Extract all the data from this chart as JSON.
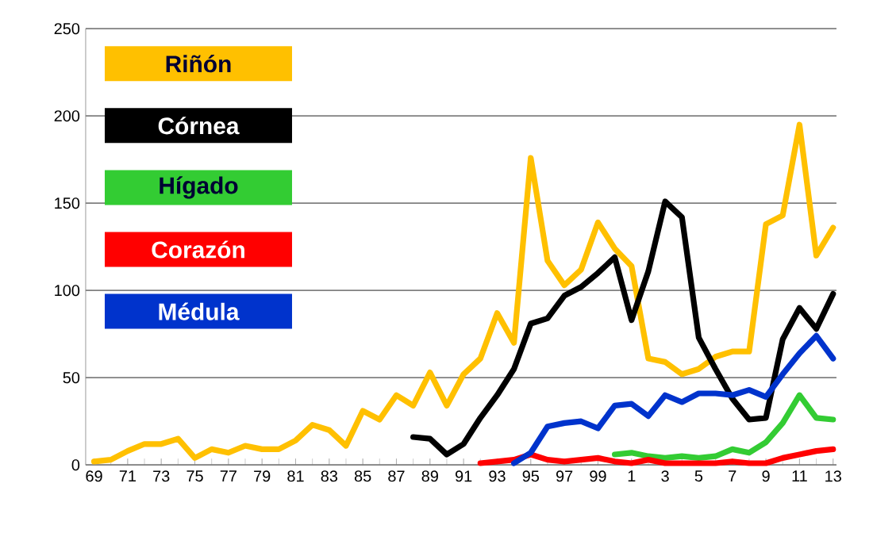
{
  "chart_data": {
    "type": "line",
    "categories": [
      "69",
      null,
      "71",
      null,
      "73",
      null,
      "75",
      null,
      "77",
      null,
      "79",
      null,
      "81",
      null,
      "83",
      null,
      "85",
      null,
      "87",
      null,
      "89",
      null,
      "91",
      null,
      "93",
      null,
      "95",
      null,
      "97",
      null,
      "99",
      null,
      "1",
      null,
      "3",
      null,
      "5",
      null,
      "7",
      null,
      "9",
      null,
      "11",
      null,
      "13"
    ],
    "series": [
      {
        "name": "Riñón",
        "color": "#ffc000",
        "values": [
          2,
          3,
          8,
          12,
          12,
          15,
          4,
          9,
          7,
          11,
          9,
          9,
          14,
          23,
          20,
          11,
          31,
          26,
          40,
          34,
          53,
          34,
          52,
          61,
          87,
          70,
          176,
          117,
          103,
          112,
          139,
          124,
          114,
          61,
          59,
          52,
          55,
          62,
          65,
          65,
          138,
          143,
          195,
          120,
          136
        ]
      },
      {
        "name": "Córnea",
        "color": "#000000",
        "values": [
          null,
          null,
          null,
          null,
          null,
          null,
          null,
          null,
          null,
          null,
          null,
          null,
          null,
          null,
          null,
          null,
          null,
          null,
          null,
          16,
          15,
          6,
          12,
          27,
          40,
          55,
          81,
          84,
          97,
          102,
          110,
          119,
          83,
          111,
          151,
          142,
          73,
          55,
          38,
          26,
          27,
          72,
          90,
          78,
          98
        ]
      },
      {
        "name": "Hígado",
        "color": "#33cc33",
        "values": [
          null,
          null,
          null,
          null,
          null,
          null,
          null,
          null,
          null,
          null,
          null,
          null,
          null,
          null,
          null,
          null,
          null,
          null,
          null,
          null,
          null,
          null,
          null,
          null,
          null,
          null,
          null,
          null,
          null,
          null,
          null,
          6,
          7,
          5,
          4,
          5,
          4,
          5,
          9,
          7,
          13,
          24,
          40,
          27,
          26
        ]
      },
      {
        "name": "Corazón",
        "color": "#ff0000",
        "values": [
          null,
          null,
          null,
          null,
          null,
          null,
          null,
          null,
          null,
          null,
          null,
          null,
          null,
          null,
          null,
          null,
          null,
          null,
          null,
          null,
          null,
          null,
          null,
          1,
          2,
          3,
          6,
          3,
          2,
          3,
          4,
          2,
          1,
          3,
          1,
          1,
          1,
          1,
          2,
          1,
          1,
          4,
          6,
          8,
          9
        ]
      },
      {
        "name": "Médula",
        "color": "#0033cc",
        "values": [
          null,
          null,
          null,
          null,
          null,
          null,
          null,
          null,
          null,
          null,
          null,
          null,
          null,
          null,
          null,
          null,
          null,
          null,
          null,
          null,
          null,
          null,
          null,
          null,
          null,
          1,
          7,
          22,
          24,
          25,
          21,
          34,
          35,
          28,
          40,
          36,
          41,
          41,
          40,
          43,
          39,
          52,
          64,
          74,
          61
        ]
      }
    ],
    "ylim": [
      0,
      250
    ],
    "yticks": [
      0,
      50,
      100,
      150,
      200,
      250
    ],
    "grid": "y",
    "legend": "top left",
    "marker": "none",
    "line_style": "solid"
  }
}
